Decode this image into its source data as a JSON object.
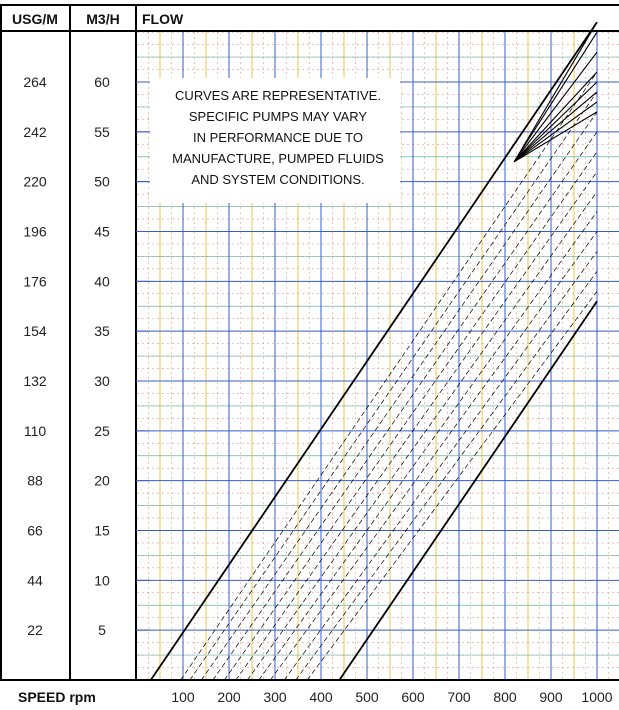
{
  "chart_data": {
    "type": "line",
    "headers": {
      "usg": "USG/M",
      "m3h": "M3/H",
      "flow": "FLOW"
    },
    "y_ticks_usg": [
      "264",
      "242",
      "220",
      "196",
      "176",
      "154",
      "132",
      "110",
      "88",
      "66",
      "44",
      "22"
    ],
    "y_ticks_m3h": [
      "60",
      "55",
      "50",
      "45",
      "40",
      "35",
      "30",
      "25",
      "20",
      "15",
      "10",
      "5"
    ],
    "y_tick_values_m3h": [
      60,
      55,
      50,
      45,
      40,
      35,
      30,
      25,
      20,
      15,
      10,
      5
    ],
    "x_ticks": [
      "100",
      "200",
      "300",
      "400",
      "500",
      "600",
      "700",
      "800",
      "900",
      "1000"
    ],
    "x_tick_values": [
      100,
      200,
      300,
      400,
      500,
      600,
      700,
      800,
      900,
      1000
    ],
    "xlabel": "SPEED rpm",
    "xlim": [
      0,
      1000
    ],
    "ylim": [
      0,
      65
    ],
    "grid": true,
    "note": [
      "CURVES ARE REPRESENTATIVE.",
      "SPECIFIC PUMPS MAY VARY",
      "IN PERFORMANCE DUE TO",
      "MANUFACTURE, PUMPED FLUIDS",
      "AND SYSTEM CONDITIONS."
    ],
    "series": [
      {
        "style": "solid",
        "points": [
          [
            30,
            0
          ],
          [
            1000,
            66
          ]
        ]
      },
      {
        "style": "dashed",
        "points": [
          [
            95,
            0
          ],
          [
            1000,
            61
          ]
        ]
      },
      {
        "style": "dashed",
        "points": [
          [
            115,
            0
          ],
          [
            1000,
            59
          ]
        ]
      },
      {
        "style": "dashed",
        "points": [
          [
            140,
            0
          ],
          [
            1000,
            57
          ]
        ]
      },
      {
        "style": "dashed",
        "points": [
          [
            165,
            0
          ],
          [
            1000,
            55
          ]
        ]
      },
      {
        "style": "dashed",
        "points": [
          [
            190,
            0
          ],
          [
            1000,
            53
          ]
        ]
      },
      {
        "style": "dashed",
        "points": [
          [
            215,
            0
          ],
          [
            1000,
            51
          ]
        ]
      },
      {
        "style": "dashed",
        "points": [
          [
            240,
            0
          ],
          [
            1000,
            49
          ]
        ]
      },
      {
        "style": "dashed",
        "points": [
          [
            265,
            0
          ],
          [
            1000,
            47
          ]
        ]
      },
      {
        "style": "dashed",
        "points": [
          [
            290,
            0
          ],
          [
            1000,
            45
          ]
        ]
      },
      {
        "style": "dashed",
        "points": [
          [
            320,
            0
          ],
          [
            1000,
            43
          ]
        ]
      },
      {
        "style": "dashed",
        "points": [
          [
            345,
            0
          ],
          [
            1000,
            41
          ]
        ]
      },
      {
        "style": "dashed",
        "points": [
          [
            370,
            0
          ],
          [
            1000,
            39
          ]
        ]
      },
      {
        "style": "solid",
        "points": [
          [
            440,
            0
          ],
          [
            1000,
            38
          ]
        ]
      }
    ],
    "fan_lines": [
      {
        "points": [
          [
            820,
            52
          ],
          [
            1000,
            66
          ]
        ]
      },
      {
        "points": [
          [
            820,
            52
          ],
          [
            1000,
            65
          ]
        ]
      },
      {
        "points": [
          [
            820,
            52
          ],
          [
            1000,
            63
          ]
        ]
      },
      {
        "points": [
          [
            820,
            52
          ],
          [
            1000,
            61
          ]
        ]
      },
      {
        "points": [
          [
            820,
            52
          ],
          [
            1000,
            60
          ]
        ]
      },
      {
        "points": [
          [
            820,
            52
          ],
          [
            1000,
            59
          ]
        ]
      },
      {
        "points": [
          [
            820,
            52
          ],
          [
            1000,
            58
          ]
        ]
      },
      {
        "points": [
          [
            820,
            52
          ],
          [
            1000,
            57
          ]
        ]
      }
    ]
  }
}
